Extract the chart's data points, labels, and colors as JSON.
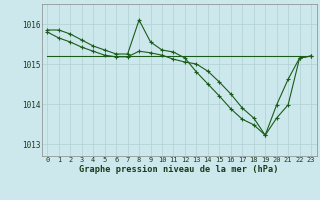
{
  "bg_color": "#cce8ec",
  "grid_color": "#b0d0d4",
  "line_color": "#1a5c1a",
  "line1": [
    1015.85,
    1015.85,
    1015.75,
    1015.6,
    1015.45,
    1015.35,
    1015.25,
    1015.25,
    1016.1,
    1015.55,
    1015.35,
    1015.3,
    1015.15,
    1014.8,
    1014.5,
    1014.2,
    1013.88,
    1013.62,
    1013.48,
    1013.22,
    1013.98,
    1014.62,
    1015.15,
    1015.2
  ],
  "line2": [
    1015.2,
    1015.2,
    1015.2,
    1015.2,
    1015.2,
    1015.2,
    1015.2,
    1015.2,
    1015.2,
    1015.2,
    1015.2,
    1015.2,
    1015.2,
    1015.2,
    1015.2,
    1015.2,
    1015.2,
    1015.2,
    1015.2,
    1015.2,
    1015.2,
    1015.2,
    1015.2,
    1015.2
  ],
  "line3": [
    1015.8,
    1015.65,
    1015.55,
    1015.42,
    1015.32,
    1015.22,
    1015.18,
    1015.18,
    1015.32,
    1015.28,
    1015.22,
    1015.12,
    1015.05,
    1015.0,
    1014.82,
    1014.55,
    1014.25,
    1013.9,
    1013.65,
    1013.22,
    1013.65,
    1013.98,
    1015.15,
    1015.2
  ],
  "xlim": [
    -0.5,
    23.5
  ],
  "ylim": [
    1012.7,
    1016.5
  ],
  "yticks": [
    1013,
    1014,
    1015,
    1016
  ],
  "xticks": [
    0,
    1,
    2,
    3,
    4,
    5,
    6,
    7,
    8,
    9,
    10,
    11,
    12,
    13,
    14,
    15,
    16,
    17,
    18,
    19,
    20,
    21,
    22,
    23
  ],
  "xlabel": "Graphe pression niveau de la mer (hPa)"
}
